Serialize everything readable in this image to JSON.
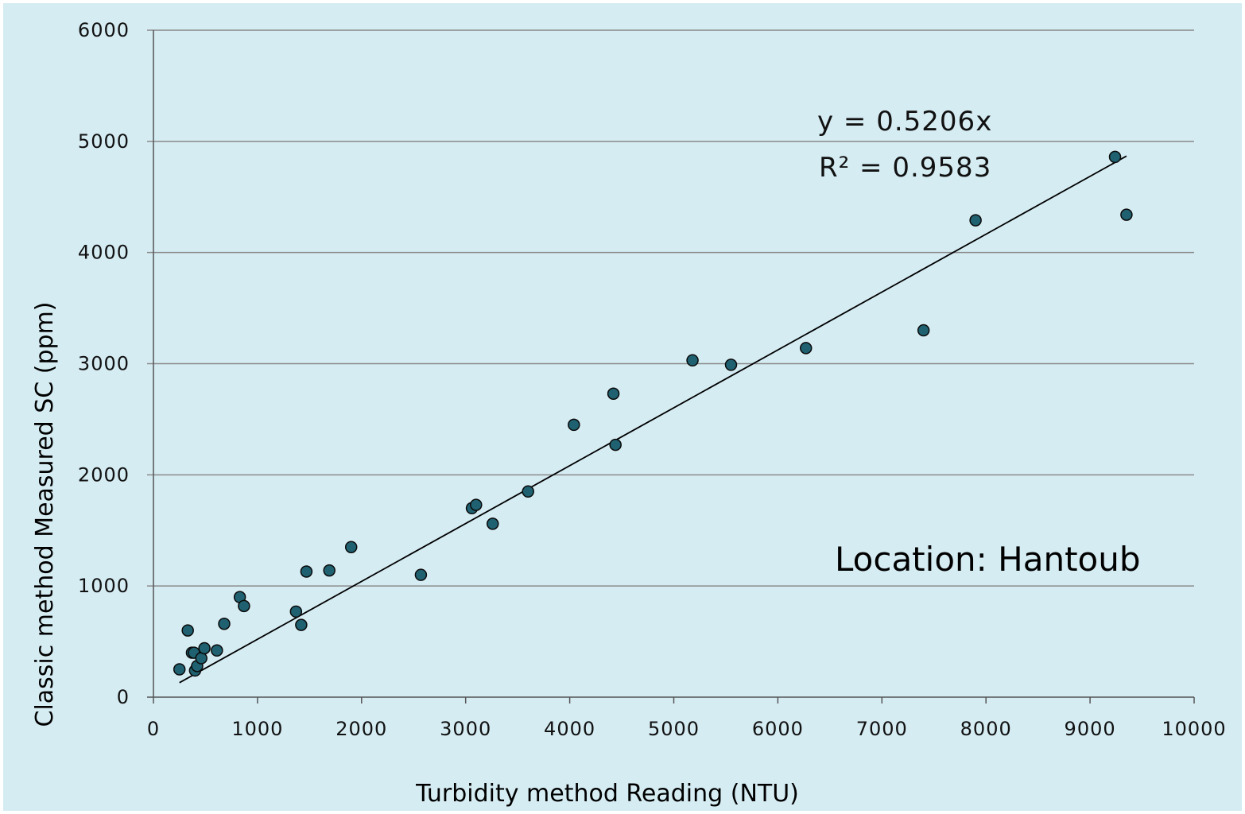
{
  "colors": {
    "background": "#d5ecf3",
    "outer": "#ffffff",
    "gridline": "#8a8a8a",
    "axis": "#555555",
    "marker_fill": "#1f6170",
    "marker_stroke": "#0a0a0a",
    "trendline": "#000000"
  },
  "annotations": {
    "equation": "y = 0.5206x",
    "r_squared": "R² = 0.9583",
    "location": "Location: Hantoub"
  },
  "chart_data": {
    "type": "scatter",
    "title": "",
    "xlabel": "Turbidity method Reading (NTU)",
    "ylabel": "Classic method Measured SC (ppm)",
    "xlim": [
      0,
      10000
    ],
    "ylim": [
      0,
      6000
    ],
    "xticks": [
      0,
      1000,
      2000,
      3000,
      4000,
      5000,
      6000,
      7000,
      8000,
      9000,
      10000
    ],
    "yticks": [
      0,
      1000,
      2000,
      3000,
      4000,
      5000,
      6000
    ],
    "grid": "horizontal",
    "legend": "none",
    "series": [
      {
        "marker": "circle",
        "points": [
          [
            250,
            250
          ],
          [
            330,
            600
          ],
          [
            370,
            400
          ],
          [
            390,
            400
          ],
          [
            400,
            240
          ],
          [
            420,
            280
          ],
          [
            460,
            350
          ],
          [
            490,
            440
          ],
          [
            610,
            420
          ],
          [
            680,
            660
          ],
          [
            830,
            900
          ],
          [
            870,
            820
          ],
          [
            1370,
            770
          ],
          [
            1420,
            650
          ],
          [
            1470,
            1130
          ],
          [
            1690,
            1140
          ],
          [
            1900,
            1350
          ],
          [
            2570,
            1100
          ],
          [
            3060,
            1700
          ],
          [
            3100,
            1730
          ],
          [
            3260,
            1560
          ],
          [
            3600,
            1850
          ],
          [
            4040,
            2450
          ],
          [
            4420,
            2730
          ],
          [
            4440,
            2270
          ],
          [
            5180,
            3030
          ],
          [
            5550,
            2990
          ],
          [
            6270,
            3140
          ],
          [
            7400,
            3300
          ],
          [
            7900,
            4290
          ],
          [
            9240,
            4860
          ],
          [
            9350,
            4340
          ]
        ]
      }
    ],
    "trendline": {
      "type": "linear",
      "slope": 0.5206,
      "intercept": 0,
      "x_range": [
        250,
        9350
      ]
    }
  }
}
